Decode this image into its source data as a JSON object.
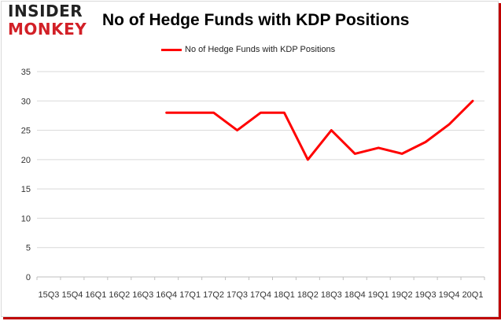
{
  "brand": {
    "logo_top": "INSIDER",
    "logo_bottom": "MONKEY"
  },
  "chart_data": {
    "type": "line",
    "title": "No of Hedge Funds with KDP Positions",
    "xlabel": "",
    "ylabel": "",
    "categories": [
      "15Q3",
      "15Q4",
      "16Q1",
      "16Q2",
      "16Q3",
      "16Q4",
      "17Q1",
      "17Q2",
      "17Q3",
      "17Q4",
      "18Q1",
      "18Q2",
      "18Q3",
      "18Q4",
      "19Q1",
      "19Q2",
      "19Q3",
      "19Q4",
      "20Q1"
    ],
    "series": [
      {
        "name": "No of Hedge Funds with KDP Positions",
        "color": "#ff0000",
        "values": [
          null,
          null,
          null,
          null,
          null,
          28,
          28,
          28,
          25,
          28,
          28,
          20,
          25,
          21,
          22,
          21,
          23,
          26,
          30
        ]
      }
    ],
    "ylim": [
      0,
      35
    ],
    "yticks": [
      0,
      5,
      10,
      15,
      20,
      25,
      30,
      35
    ],
    "grid": true,
    "legend_position": "top"
  }
}
